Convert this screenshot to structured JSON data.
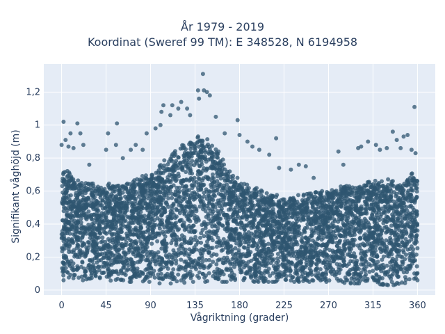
{
  "chart_data": {
    "type": "scatter",
    "title_line1": "År 1979 - 2019",
    "title_line2": "Koordinat (Sweref 99 TM): E 348528, N 6194958",
    "xlabel": "Vågriktning (grader)",
    "ylabel": "Signifikant våghöjd (m)",
    "xlim": [
      -18,
      378
    ],
    "ylim": [
      -0.03,
      1.37
    ],
    "x_ticks": [
      0,
      45,
      90,
      135,
      180,
      225,
      270,
      315,
      360
    ],
    "x_tick_labels": [
      "0",
      "45",
      "90",
      "135",
      "180",
      "225",
      "270",
      "315",
      "360"
    ],
    "y_ticks": [
      0,
      0.2,
      0.4,
      0.6,
      0.8,
      1.0,
      1.2
    ],
    "y_tick_labels": [
      "0",
      "0,2",
      "0,4",
      "0,6",
      "0,8",
      "1",
      "1,2"
    ],
    "grid": true,
    "marker_color": "#2f5570",
    "plot_bg": "#e5ecf6",
    "envelope": {
      "x": [
        0,
        10,
        20,
        30,
        45,
        60,
        75,
        90,
        100,
        110,
        120,
        130,
        140,
        150,
        160,
        170,
        180,
        195,
        210,
        225,
        240,
        255,
        270,
        285,
        300,
        315,
        330,
        345,
        355,
        360
      ],
      "upper": [
        0.72,
        0.7,
        0.66,
        0.64,
        0.63,
        0.64,
        0.67,
        0.7,
        0.76,
        0.82,
        0.86,
        0.9,
        0.93,
        0.9,
        0.82,
        0.72,
        0.66,
        0.62,
        0.58,
        0.55,
        0.56,
        0.58,
        0.6,
        0.62,
        0.64,
        0.65,
        0.66,
        0.67,
        0.7,
        0.66
      ],
      "lower": [
        0.06,
        0.06,
        0.06,
        0.06,
        0.05,
        0.05,
        0.05,
        0.05,
        0.04,
        0.04,
        0.04,
        0.05,
        0.05,
        0.05,
        0.05,
        0.05,
        0.05,
        0.05,
        0.05,
        0.05,
        0.05,
        0.05,
        0.05,
        0.04,
        0.04,
        0.04,
        0.03,
        0.03,
        0.04,
        0.06
      ]
    },
    "outliers": [
      [
        0,
        0.88
      ],
      [
        2,
        1.02
      ],
      [
        4,
        0.91
      ],
      [
        7,
        0.87
      ],
      [
        9,
        0.95
      ],
      [
        12,
        0.86
      ],
      [
        16,
        1.01
      ],
      [
        19,
        0.95
      ],
      [
        22,
        0.88
      ],
      [
        28,
        0.76
      ],
      [
        45,
        0.85
      ],
      [
        47,
        0.95
      ],
      [
        55,
        0.88
      ],
      [
        56,
        1.01
      ],
      [
        62,
        0.8
      ],
      [
        70,
        0.85
      ],
      [
        75,
        0.88
      ],
      [
        82,
        0.85
      ],
      [
        86,
        0.95
      ],
      [
        95,
        0.98
      ],
      [
        100,
        1.0
      ],
      [
        101,
        1.08
      ],
      [
        103,
        1.12
      ],
      [
        110,
        1.06
      ],
      [
        112,
        1.12
      ],
      [
        118,
        1.1
      ],
      [
        121,
        1.14
      ],
      [
        127,
        1.1
      ],
      [
        130,
        1.06
      ],
      [
        138,
        1.21
      ],
      [
        139,
        1.16
      ],
      [
        143,
        1.31
      ],
      [
        144,
        1.21
      ],
      [
        147,
        1.2
      ],
      [
        150,
        1.18
      ],
      [
        156,
        1.05
      ],
      [
        165,
        0.95
      ],
      [
        178,
        1.03
      ],
      [
        180,
        0.94
      ],
      [
        188,
        0.9
      ],
      [
        193,
        0.87
      ],
      [
        200,
        0.85
      ],
      [
        210,
        0.82
      ],
      [
        217,
        0.92
      ],
      [
        220,
        0.74
      ],
      [
        232,
        0.73
      ],
      [
        240,
        0.76
      ],
      [
        247,
        0.75
      ],
      [
        255,
        0.68
      ],
      [
        280,
        0.84
      ],
      [
        285,
        0.76
      ],
      [
        300,
        0.86
      ],
      [
        303,
        0.87
      ],
      [
        310,
        0.9
      ],
      [
        318,
        0.88
      ],
      [
        322,
        0.85
      ],
      [
        329,
        0.86
      ],
      [
        335,
        0.96
      ],
      [
        339,
        0.91
      ],
      [
        343,
        0.86
      ],
      [
        346,
        0.93
      ],
      [
        350,
        0.94
      ],
      [
        354,
        0.85
      ],
      [
        357,
        1.11
      ],
      [
        358,
        0.83
      ]
    ],
    "n_points": 5200
  }
}
